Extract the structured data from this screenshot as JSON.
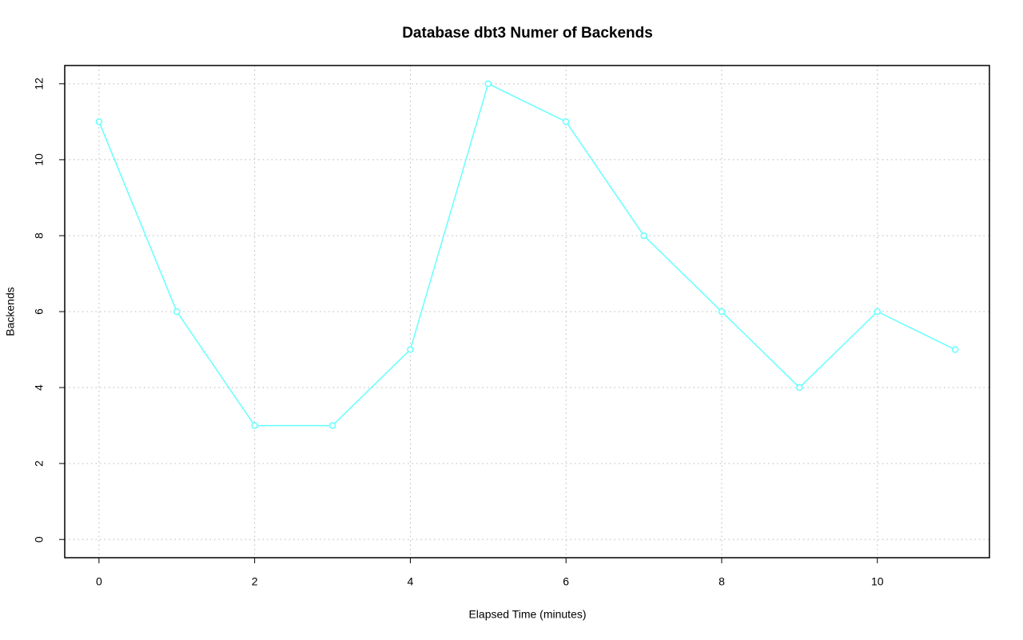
{
  "chart_data": {
    "type": "line",
    "title": "Database dbt3 Numer of Backends",
    "xlabel": "Elapsed Time (minutes)",
    "ylabel": "Backends",
    "x": [
      0,
      1,
      2,
      3,
      4,
      5,
      6,
      7,
      8,
      9,
      10,
      11
    ],
    "series": [
      {
        "name": "Backends",
        "color": "#66ffff",
        "values": [
          11,
          6,
          3,
          3,
          5,
          12,
          11,
          8,
          6,
          4,
          6,
          5
        ]
      }
    ],
    "xlim": [
      -0.44,
      11.44
    ],
    "xticks": [
      0,
      2,
      4,
      6,
      8,
      10
    ],
    "ylim": [
      -0.48,
      12.48
    ],
    "yticks": [
      0,
      2,
      4,
      6,
      8,
      10,
      12
    ],
    "grid": true
  }
}
